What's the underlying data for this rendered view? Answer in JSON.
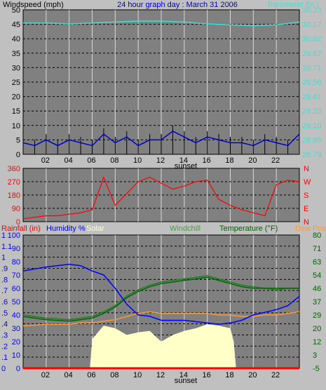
{
  "header": {
    "left_title": "Windspeed (mph)",
    "center_title": "24 hour graph day : March 31 2006",
    "right_title": "Barometer (in.)"
  },
  "panel1": {
    "wind_ticks": [
      "50",
      "45",
      "40",
      "35",
      "30",
      "25",
      "20",
      "15",
      "10",
      "5",
      "0"
    ],
    "baro_ticks": [
      "30.33",
      "30.17",
      "30.02",
      "29.87",
      "29.71",
      "29.56",
      "29.41",
      "29.25",
      "29.10",
      "28.95",
      "28.79"
    ],
    "x_ticks": [
      "02",
      "04",
      "06",
      "08",
      "10",
      "12",
      "14",
      "16",
      "18",
      "20",
      "22"
    ],
    "sunset_label": "sunset",
    "baro_color": "#40e0d0",
    "wind_avg_color": "#0000cc",
    "wind_gust_color": "#000000"
  },
  "panel2": {
    "dir_ticks": [
      "360",
      "270",
      "180",
      "90",
      "0"
    ],
    "compass": [
      "N",
      "W",
      "S",
      "E",
      "N"
    ],
    "line_color": "#ff0000"
  },
  "panel3": {
    "legend": {
      "rainfall": "Rainfall (in)",
      "humidity": "Humidity %",
      "solar": "Solar",
      "windchill": "Windchill",
      "temperature": "Temperature (°F)",
      "dewpoint": "Dew Point"
    },
    "rain_ticks": [
      "1",
      "1.1",
      "1",
      ".9",
      ".8",
      ".7",
      ".6",
      ".5",
      ".4",
      ".3",
      ".2",
      ".1",
      "0"
    ],
    "hum_ticks": [
      "100",
      "90",
      "80",
      "70",
      "60",
      "50",
      "40",
      "30",
      "20",
      "10",
      "0"
    ],
    "temp_ticks": [
      "80",
      "71",
      "63",
      "54",
      "46",
      "37",
      "29",
      "20",
      "12",
      "3",
      "-5"
    ],
    "x_ticks": [
      "02",
      "04",
      "06",
      "08",
      "10",
      "12",
      "14",
      "16",
      "18",
      "20",
      "22"
    ],
    "sunset_label": "sunset",
    "colors": {
      "rainfall": "#ff0000",
      "humidity": "#0000ff",
      "solar": "#ffffc8",
      "windchill": "#208020",
      "temperature": "#006400",
      "dewpoint": "#ff9933"
    }
  },
  "chart_data": [
    {
      "type": "line",
      "title": "24 hour graph day : March 31 2006",
      "xlabel": "",
      "x_unit": "hour",
      "xlim": [
        0,
        24
      ],
      "series": [
        {
          "name": "Windspeed (mph)",
          "axis": "left",
          "ylim": [
            0,
            50
          ],
          "x": [
            0,
            1,
            2,
            3,
            4,
            5,
            6,
            7,
            8,
            9,
            10,
            11,
            12,
            13,
            14,
            15,
            16,
            17,
            18,
            19,
            20,
            21,
            22,
            23,
            24
          ],
          "values": [
            4,
            3,
            5,
            3,
            5,
            4,
            3,
            7,
            4,
            6,
            3,
            5,
            5,
            8,
            6,
            4,
            6,
            5,
            4,
            4,
            3,
            5,
            4,
            3,
            7
          ]
        },
        {
          "name": "Barometer (in.)",
          "axis": "right",
          "ylim": [
            28.79,
            30.33
          ],
          "x": [
            0,
            2,
            4,
            6,
            8,
            10,
            12,
            14,
            16,
            18,
            20,
            22,
            24
          ],
          "values": [
            30.19,
            30.19,
            30.18,
            30.19,
            30.2,
            30.21,
            30.21,
            30.2,
            30.18,
            30.17,
            30.16,
            30.17,
            30.2
          ]
        }
      ]
    },
    {
      "type": "line",
      "ylabel": "Wind direction",
      "ylim": [
        0,
        360
      ],
      "series": [
        {
          "name": "Wind direction",
          "x": [
            0,
            1,
            2,
            3,
            4,
            5,
            6,
            7,
            8,
            9,
            10,
            11,
            12,
            13,
            14,
            15,
            16,
            17,
            18,
            19,
            20,
            21,
            22,
            23,
            24
          ],
          "values": [
            20,
            30,
            40,
            40,
            50,
            60,
            80,
            300,
            110,
            190,
            270,
            300,
            260,
            220,
            240,
            270,
            280,
            150,
            110,
            80,
            60,
            40,
            250,
            280,
            270
          ]
        }
      ]
    },
    {
      "type": "line",
      "xlim": [
        0,
        24
      ],
      "series": [
        {
          "name": "Humidity %",
          "axis": "humidity",
          "ylim": [
            0,
            100
          ],
          "x": [
            0,
            2,
            4,
            5,
            6,
            7,
            8,
            9,
            10,
            11,
            12,
            13,
            14,
            15,
            16,
            17,
            18,
            19,
            20,
            21,
            22,
            23,
            24
          ],
          "values": [
            73,
            76,
            78,
            77,
            73,
            70,
            60,
            48,
            40,
            39,
            36,
            36,
            36,
            35,
            34,
            33,
            34,
            36,
            40,
            42,
            44,
            47,
            54
          ]
        },
        {
          "name": "Temperature (°F)",
          "axis": "temperature",
          "ylim": [
            -5,
            80
          ],
          "x": [
            0,
            2,
            4,
            5,
            6,
            7,
            8,
            9,
            10,
            11,
            12,
            13,
            14,
            15,
            16,
            17,
            18,
            19,
            20,
            21,
            22,
            23,
            24
          ],
          "values": [
            28,
            26,
            25,
            26,
            27,
            30,
            34,
            40,
            44,
            47,
            49,
            50,
            51,
            52,
            53,
            51,
            49,
            47,
            46,
            46,
            46,
            46,
            46
          ]
        },
        {
          "name": "Windchill",
          "axis": "temperature",
          "ylim": [
            -5,
            80
          ],
          "x": [
            0,
            2,
            4,
            5,
            6,
            7,
            8,
            9,
            10,
            11,
            12,
            13,
            14,
            15,
            16,
            17,
            18,
            19,
            20,
            21,
            22,
            23,
            24
          ],
          "values": [
            29,
            27,
            26,
            27,
            28,
            31,
            35,
            41,
            45,
            48,
            50,
            51,
            52,
            53,
            54,
            52,
            50,
            48,
            47,
            46,
            45,
            46,
            46
          ]
        },
        {
          "name": "Dew Point",
          "axis": "temperature",
          "ylim": [
            -5,
            80
          ],
          "x": [
            0,
            2,
            4,
            5,
            6,
            7,
            8,
            9,
            10,
            11,
            12,
            13,
            14,
            15,
            16,
            17,
            18,
            19,
            20,
            21,
            22,
            23,
            24
          ],
          "values": [
            22,
            23,
            23,
            24,
            24,
            25,
            26,
            28,
            30,
            31,
            30,
            30,
            30,
            30,
            30,
            29,
            29,
            28,
            28,
            29,
            29,
            30,
            31
          ]
        },
        {
          "name": "Solar",
          "axis": "humidity",
          "ylim": [
            0,
            100
          ],
          "x": [
            0,
            5,
            5.8,
            6,
            7,
            8,
            9,
            10,
            11,
            12,
            13,
            14,
            15,
            16,
            17,
            18,
            18.3,
            18.5,
            24
          ],
          "values": [
            0,
            0,
            0,
            22,
            32,
            30,
            25,
            27,
            28,
            20,
            25,
            28,
            30,
            33,
            32,
            30,
            20,
            0,
            0
          ]
        },
        {
          "name": "Rainfall (in)",
          "axis": "rain",
          "ylim": [
            0,
            1.2
          ],
          "x": [
            0,
            24
          ],
          "values": [
            0,
            0
          ]
        }
      ]
    }
  ]
}
